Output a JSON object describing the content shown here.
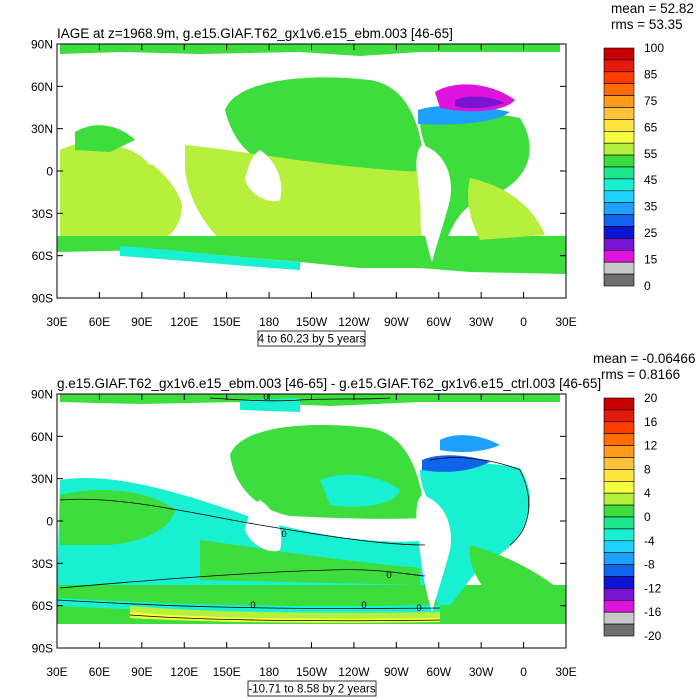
{
  "panels": [
    {
      "title": "IAGE at z=1968.9m, g.e15.GIAF.T62_gx1v6.e15_ebm.003 [46-65]",
      "stats": {
        "mean": "mean = 52.82",
        "rms": "rms = 53.35"
      },
      "info_box": "4 to 60.23 by 5 years",
      "lat_ticks": [
        "90N",
        "60N",
        "30N",
        "0",
        "30S",
        "60S",
        "90S"
      ],
      "lon_ticks": [
        "30E",
        "60E",
        "90E",
        "120E",
        "150E",
        "180",
        "150W",
        "120W",
        "90W",
        "60W",
        "30W",
        "0",
        "30E"
      ],
      "colorbar": {
        "labels": [
          "100",
          "85",
          "75",
          "65",
          "55",
          "45",
          "35",
          "25",
          "15",
          "0"
        ],
        "colors": [
          "#c80000",
          "#e41a0a",
          "#ff3c00",
          "#ff6d00",
          "#ff9a1a",
          "#ffc23a",
          "#ffe53c",
          "#f5ff40",
          "#b6f03c",
          "#3cdd3c",
          "#1ee68c",
          "#19f0d2",
          "#20d2ff",
          "#1ea0ff",
          "#1064ec",
          "#0a14d2",
          "#7814d2",
          "#dc14dc",
          "#c8c8c8",
          "#6e6e6e"
        ]
      },
      "contour_labels": []
    },
    {
      "title": "g.e15.GIAF.T62_gx1v6.e15_ebm.003 [46-65] - g.e15.GIAF.T62_gx1v6.e15_ctrl.003 [46-65]",
      "stats": {
        "mean": "mean = -0.06466",
        "rms": "rms = 0.8166"
      },
      "info_box": "-10.71 to 8.58 by 2 years",
      "lat_ticks": [
        "90N",
        "60N",
        "30N",
        "0",
        "30S",
        "60S",
        "90S"
      ],
      "lon_ticks": [
        "30E",
        "60E",
        "90E",
        "120E",
        "150E",
        "180",
        "150W",
        "120W",
        "90W",
        "60W",
        "30W",
        "0",
        "30E"
      ],
      "colorbar": {
        "labels": [
          "20",
          "16",
          "12",
          "8",
          "4",
          "0",
          "-4",
          "-8",
          "-12",
          "-16",
          "-20"
        ],
        "colors": [
          "#c80000",
          "#e41a0a",
          "#ff3c00",
          "#ff6d00",
          "#ff9a1a",
          "#ffc23a",
          "#ffe53c",
          "#f5ff40",
          "#b6f03c",
          "#3cdd3c",
          "#1ee68c",
          "#19f0d2",
          "#20d2ff",
          "#1ea0ff",
          "#1064ec",
          "#0a14d2",
          "#7814d2",
          "#dc14dc",
          "#c8c8c8",
          "#6e6e6e"
        ]
      },
      "contour_labels": [
        "0",
        "0",
        "0",
        "0",
        "0",
        "0"
      ]
    }
  ]
}
